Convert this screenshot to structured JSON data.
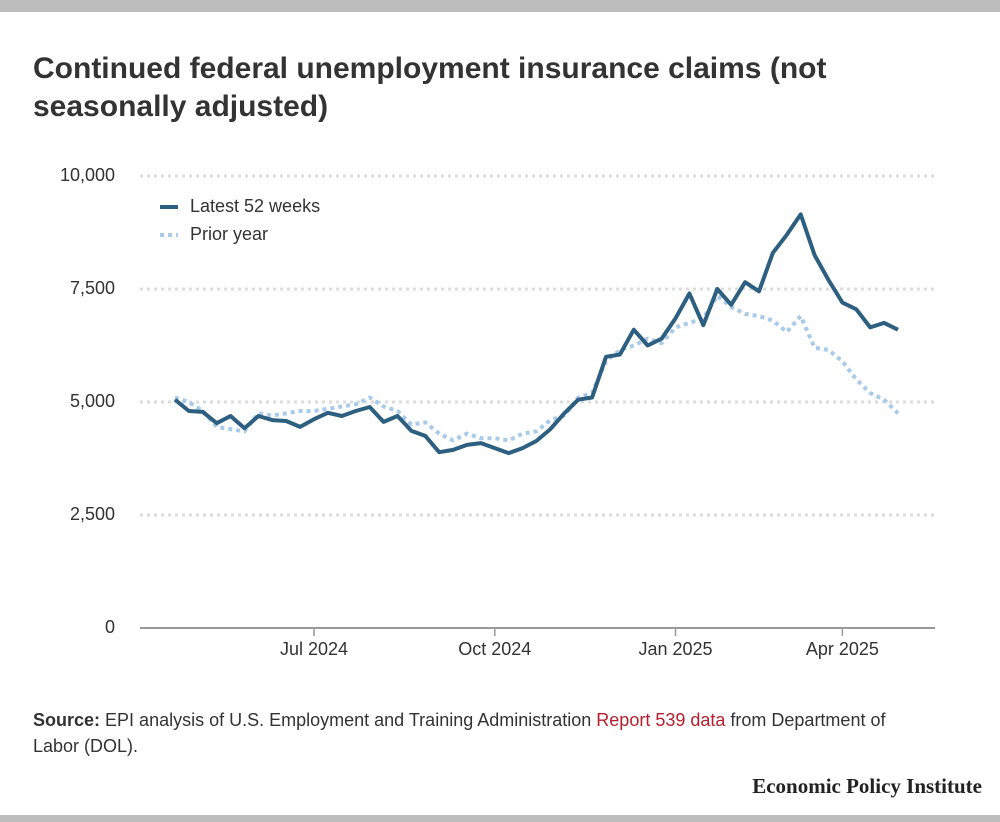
{
  "chart_data": {
    "type": "line",
    "title": "Continued federal unemployment insurance claims (not seasonally adjusted)",
    "categories": [
      null,
      null,
      null,
      null,
      null,
      null,
      null,
      null,
      null,
      null,
      "Jul 2024",
      null,
      null,
      null,
      null,
      null,
      null,
      null,
      null,
      null,
      null,
      null,
      null,
      "Oct 2024",
      null,
      null,
      null,
      null,
      null,
      null,
      null,
      null,
      null,
      null,
      null,
      null,
      "Jan 2025",
      null,
      null,
      null,
      null,
      null,
      null,
      null,
      null,
      null,
      null,
      null,
      "Apr 2025",
      null,
      null,
      null,
      null
    ],
    "series": [
      {
        "name": "Latest 52 weeks",
        "color": "#2c5f80",
        "style": "solid",
        "values": [
          5050,
          4800,
          4780,
          4530,
          4690,
          4420,
          4690,
          4600,
          4580,
          4450,
          4620,
          4760,
          4690,
          4800,
          4890,
          4560,
          4690,
          4360,
          4250,
          3890,
          3940,
          4050,
          4090,
          3980,
          3870,
          3980,
          4140,
          4400,
          4750,
          5050,
          5100,
          6000,
          6050,
          6600,
          6250,
          6400,
          6850,
          7400,
          6700,
          7500,
          7150,
          7650,
          7450,
          8300,
          8700,
          9150,
          8250,
          7700,
          7200,
          7050,
          6650,
          6750,
          6600
        ]
      },
      {
        "name": "Prior year",
        "color": "#a8cbe9",
        "style": "dotted",
        "values": [
          5100,
          5000,
          4800,
          4450,
          4400,
          4350,
          4750,
          4700,
          4750,
          4800,
          4800,
          4850,
          4900,
          4950,
          5100,
          4900,
          4800,
          4500,
          4550,
          4300,
          4150,
          4300,
          4200,
          4200,
          4150,
          4300,
          4350,
          4600,
          4700,
          5100,
          5200,
          5900,
          6150,
          6250,
          6400,
          6300,
          6650,
          6750,
          6850,
          7350,
          7100,
          6950,
          6900,
          6800,
          6550,
          6900,
          6200,
          6150,
          5900,
          5500,
          5200,
          5050,
          4750
        ]
      }
    ],
    "ylim": [
      0,
      10000
    ],
    "yticks": [
      0,
      {
        "value": 2500,
        "label": "2,500"
      },
      {
        "value": 5000,
        "label": "5,000"
      },
      {
        "value": 7500,
        "label": "7,500"
      },
      {
        "value": 10000,
        "label": "10,000"
      }
    ],
    "grid": true,
    "legend": "top-left",
    "source": {
      "label": "Source:",
      "text": "EPI analysis of U.S. Employment and Training Administration",
      "link": "Report 539 data",
      "text_after": "from Department of Labor (DOL)."
    },
    "credit": "Economic Policy Institute"
  }
}
